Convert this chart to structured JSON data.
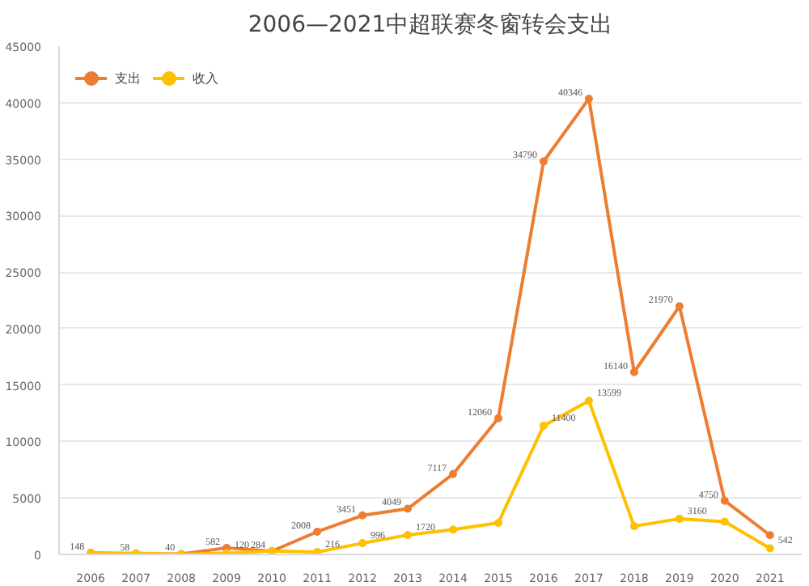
{
  "chart_data": {
    "type": "line",
    "title": "2006—2021中超联赛冬窗转会支出",
    "categories": [
      "2006",
      "2007",
      "2008",
      "2009",
      "2010",
      "2011",
      "2012",
      "2013",
      "2014",
      "2015",
      "2016",
      "2017",
      "2018",
      "2019",
      "2020",
      "2021"
    ],
    "series": [
      {
        "name": "支出",
        "color": "#ed7d31",
        "values": [
          148,
          58,
          40,
          582,
          284,
          2008,
          3451,
          4049,
          7117,
          12060,
          34790,
          40346,
          16140,
          21970,
          4750,
          1700
        ],
        "value_labels": [
          "148",
          "58",
          "40",
          "582",
          "284",
          "2008",
          "3451",
          "4049",
          "7117",
          "12060",
          "34790",
          "40346",
          "16140",
          "21970",
          "4750",
          null
        ]
      },
      {
        "name": "收入",
        "color": "#ffc000",
        "values": [
          100,
          100,
          0,
          120,
          300,
          216,
          996,
          1720,
          2200,
          2800,
          11400,
          13599,
          2500,
          3160,
          2900,
          542
        ],
        "value_labels": [
          null,
          null,
          null,
          "120",
          null,
          "216",
          "996",
          "1720",
          null,
          null,
          "11400",
          "13599",
          null,
          "3160",
          null,
          "542"
        ]
      }
    ],
    "ylim": [
      0,
      45000
    ],
    "yticks": [
      0,
      5000,
      10000,
      15000,
      20000,
      25000,
      30000,
      35000,
      40000,
      45000
    ],
    "grid": "y",
    "legend": "top left",
    "marker": "circle",
    "line_style": "solid"
  }
}
